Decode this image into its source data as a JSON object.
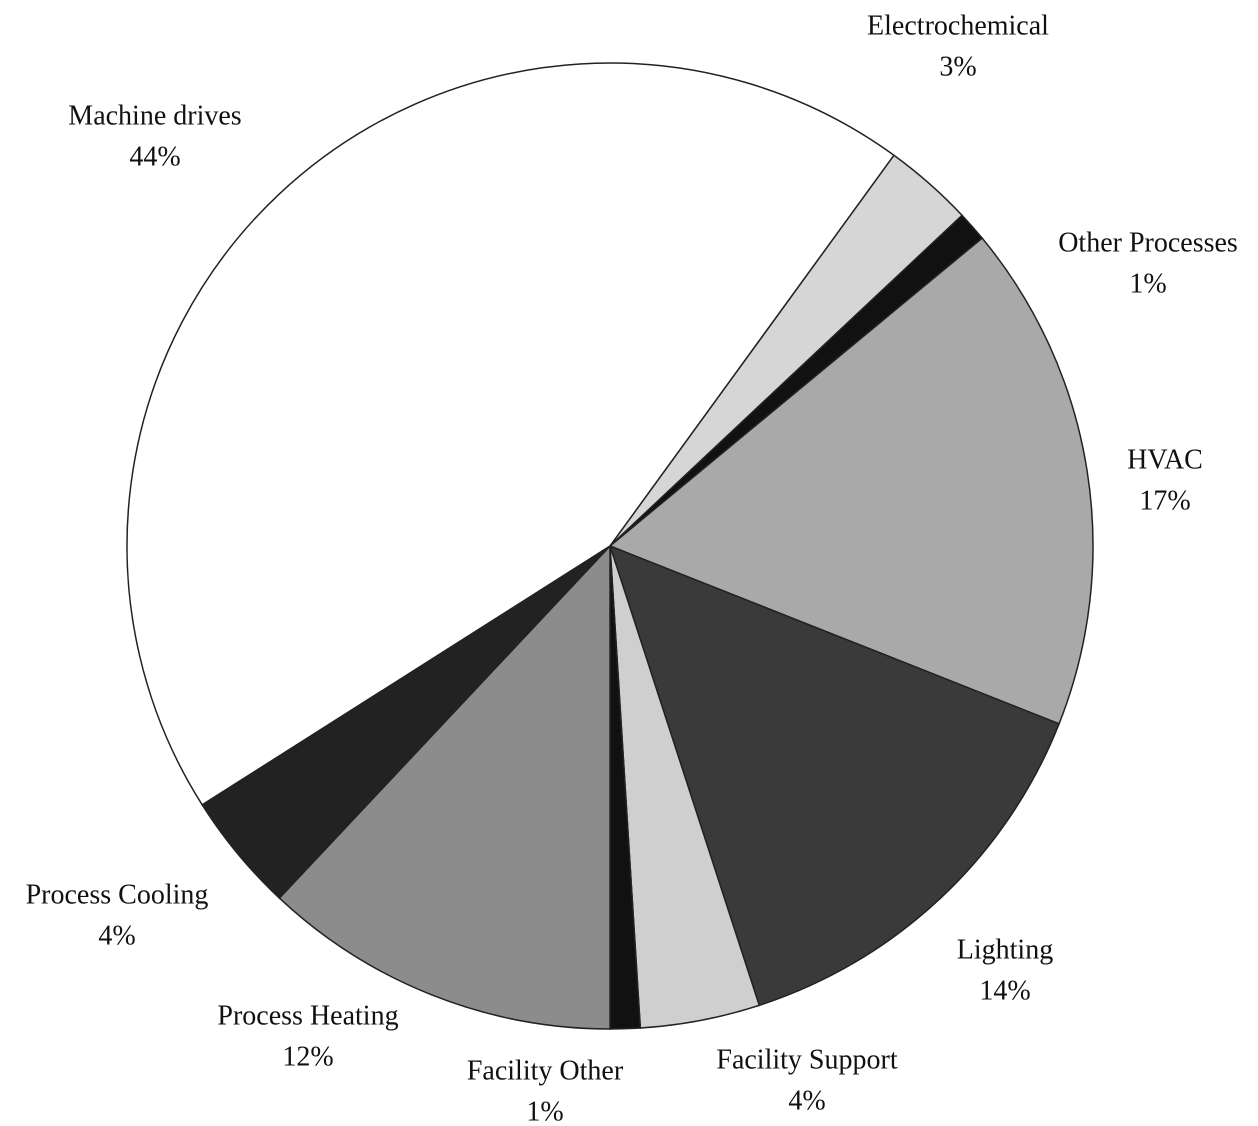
{
  "chart_data": {
    "type": "pie",
    "categories": [
      "Electrochemical",
      "Other Processes",
      "HVAC",
      "Lighting",
      "Facility Support",
      "Facility Other",
      "Process Heating",
      "Process Cooling",
      "Machine drives"
    ],
    "values": [
      3,
      1,
      17,
      14,
      4,
      1,
      12,
      4,
      44
    ],
    "value_labels": [
      "3%",
      "1%",
      "17%",
      "14%",
      "4%",
      "1%",
      "12%",
      "4%",
      "44%"
    ],
    "colors": [
      "#d6d6d6",
      "#111111",
      "#a9a9a9",
      "#3a3a3a",
      "#cfcfcf",
      "#111111",
      "#8c8c8c",
      "#222222",
      "#ffffff"
    ]
  }
}
